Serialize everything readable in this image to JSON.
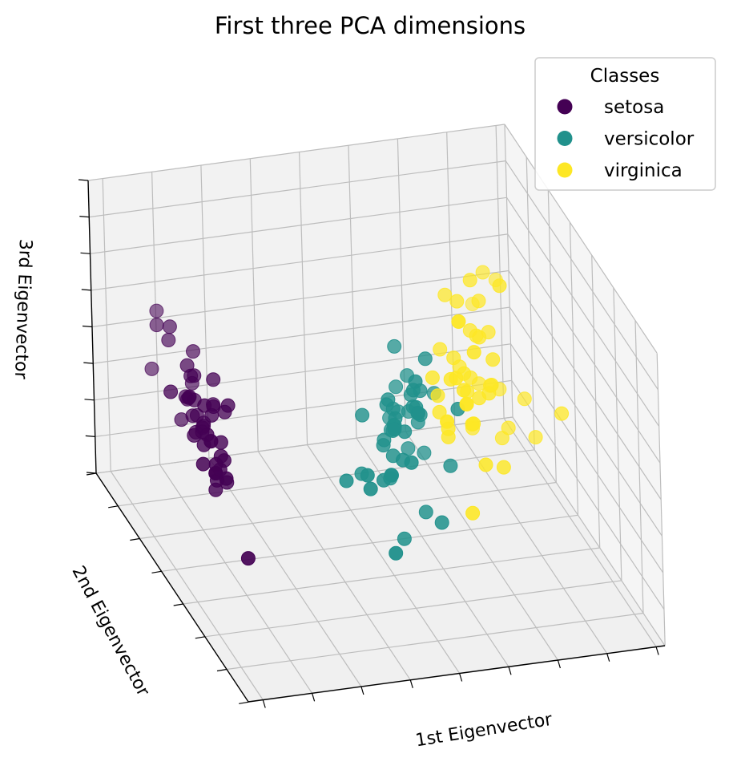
{
  "chart_data": {
    "type": "scatter",
    "title": "First three PCA dimensions",
    "xlabel": "1st Eigenvector",
    "ylabel": "2nd Eigenvector",
    "zlabel": "3rd Eigenvector",
    "projection": "3d",
    "grid": true,
    "tick_labels_visible": false,
    "legend": {
      "title": "Classes",
      "placement": "top-right",
      "entries": [
        {
          "name": "setosa",
          "color": "#440154"
        },
        {
          "name": "versicolor",
          "color": "#21918c"
        },
        {
          "name": "virginica",
          "color": "#fde725"
        }
      ]
    },
    "series": [
      {
        "name": "setosa",
        "color": "#440154",
        "points": [
          [
            -2.68,
            0.32,
            -0.03
          ],
          [
            -2.71,
            -0.18,
            -0.21
          ],
          [
            -2.89,
            -0.14,
            0.02
          ],
          [
            -2.75,
            -0.32,
            0.03
          ],
          [
            -2.73,
            0.33,
            0.09
          ],
          [
            -2.28,
            0.74,
            0.17
          ],
          [
            -2.82,
            -0.09,
            0.26
          ],
          [
            -2.63,
            0.16,
            -0.02
          ],
          [
            -2.89,
            -0.58,
            0.02
          ],
          [
            -2.67,
            -0.11,
            -0.2
          ],
          [
            -2.51,
            0.65,
            -0.08
          ],
          [
            -2.61,
            0.01,
            0.13
          ],
          [
            -2.79,
            -0.24,
            -0.24
          ],
          [
            -3.23,
            -0.51,
            0.1
          ],
          [
            -2.64,
            1.18,
            -0.16
          ],
          [
            -2.39,
            1.34,
            0.14
          ],
          [
            -2.62,
            0.81,
            0.32
          ],
          [
            -2.65,
            0.31,
            0.08
          ],
          [
            -2.2,
            0.87,
            -0.12
          ],
          [
            -2.59,
            0.51,
            0.21
          ],
          [
            -2.31,
            0.39,
            -0.26
          ],
          [
            -2.54,
            0.43,
            0.18
          ],
          [
            -3.22,
            0.13,
            0.26
          ],
          [
            -2.3,
            0.1,
            0.09
          ],
          [
            -2.36,
            -0.04,
            0.21
          ],
          [
            -2.51,
            -0.15,
            -0.25
          ],
          [
            -2.47,
            0.13,
            0.12
          ],
          [
            -2.56,
            0.37,
            -0.06
          ],
          [
            -2.64,
            0.31,
            -0.14
          ],
          [
            -2.63,
            -0.19,
            0.05
          ],
          [
            -2.59,
            -0.2,
            -0.07
          ],
          [
            -2.41,
            0.41,
            -0.14
          ],
          [
            -2.65,
            0.81,
            0.23
          ],
          [
            -2.6,
            1.1,
            0.18
          ],
          [
            -2.67,
            -0.11,
            -0.2
          ],
          [
            -2.87,
            0.08,
            -0.03
          ],
          [
            -2.63,
            0.61,
            -0.21
          ],
          [
            -2.67,
            -0.11,
            -0.2
          ],
          [
            -2.98,
            -0.48,
            0.07
          ],
          [
            -2.59,
            0.23,
            -0.07
          ],
          [
            -2.77,
            0.27,
            0.13
          ],
          [
            -2.85,
            -0.94,
            -0.34
          ],
          [
            -3.0,
            -0.34,
            0.2
          ],
          [
            -2.41,
            0.19,
            0.27
          ],
          [
            -2.21,
            0.44,
            -0.04
          ],
          [
            -2.71,
            -0.25,
            -0.1
          ],
          [
            -2.54,
            0.5,
            0.14
          ],
          [
            -2.84,
            -0.23,
            0.09
          ],
          [
            -2.54,
            0.58,
            -0.06
          ],
          [
            -2.7,
            0.11,
            -0.03
          ]
        ]
      },
      {
        "name": "versicolor",
        "color": "#21918c",
        "points": [
          [
            1.28,
            0.69,
            -0.4
          ],
          [
            0.93,
            0.32,
            -0.02
          ],
          [
            1.46,
            0.5,
            -0.32
          ],
          [
            0.18,
            -0.83,
            0.1
          ],
          [
            1.09,
            0.07,
            -0.14
          ],
          [
            0.64,
            -0.42,
            0.24
          ],
          [
            1.1,
            0.28,
            0.07
          ],
          [
            -0.75,
            -1.0,
            0.15
          ],
          [
            1.04,
            0.23,
            -0.4
          ],
          [
            -0.01,
            -0.72,
            0.28
          ],
          [
            -0.51,
            -1.26,
            -0.26
          ],
          [
            0.51,
            -0.1,
            0.07
          ],
          [
            0.26,
            -0.55,
            -0.57
          ],
          [
            0.98,
            -0.12,
            0.18
          ],
          [
            -0.17,
            -0.25,
            0.14
          ],
          [
            0.93,
            0.47,
            -0.31
          ],
          [
            0.66,
            -0.35,
            0.32
          ],
          [
            0.23,
            -0.33,
            -0.27
          ],
          [
            0.94,
            -0.54,
            -0.5
          ],
          [
            0.04,
            -0.58,
            -0.11
          ],
          [
            1.12,
            -0.08,
            0.37
          ],
          [
            0.36,
            -0.07,
            -0.15
          ],
          [
            1.3,
            -0.33,
            -0.24
          ],
          [
            0.92,
            -0.18,
            0.05
          ],
          [
            0.71,
            0.15,
            -0.22
          ],
          [
            0.9,
            0.33,
            -0.29
          ],
          [
            1.33,
            0.24,
            -0.45
          ],
          [
            1.56,
            0.27,
            -0.07
          ],
          [
            0.81,
            -0.16,
            0.1
          ],
          [
            -0.31,
            -0.37,
            -0.19
          ],
          [
            -0.07,
            -0.7,
            -0.04
          ],
          [
            -0.19,
            -0.68,
            -0.08
          ],
          [
            0.14,
            -0.31,
            -0.05
          ],
          [
            1.38,
            -0.42,
            0.19
          ],
          [
            0.59,
            -0.48,
            0.45
          ],
          [
            0.81,
            0.19,
            0.33
          ],
          [
            1.22,
            0.41,
            -0.25
          ],
          [
            0.81,
            -0.37,
            -0.51
          ],
          [
            0.25,
            -0.27,
            0.2
          ],
          [
            0.16,
            -0.68,
            0.04
          ],
          [
            0.46,
            -0.67,
            0.34
          ],
          [
            0.89,
            -0.03,
            0.11
          ],
          [
            0.23,
            -0.4,
            -0.08
          ],
          [
            -0.71,
            -1.01,
            0.06
          ],
          [
            0.36,
            -0.5,
            0.13
          ],
          [
            0.33,
            -0.21,
            0.2
          ],
          [
            0.38,
            -0.29,
            0.11
          ],
          [
            0.64,
            0.11,
            -0.19
          ],
          [
            -0.91,
            -0.75,
            -0.01
          ],
          [
            0.3,
            -0.35,
            0.1
          ]
        ]
      },
      {
        "name": "virginica",
        "color": "#fde725",
        "points": [
          [
            2.53,
            -0.01,
            0.76
          ],
          [
            1.41,
            -0.57,
            0.3
          ],
          [
            2.62,
            0.34,
            -0.11
          ],
          [
            1.97,
            -0.18,
            0.11
          ],
          [
            2.35,
            -0.04,
            0.28
          ],
          [
            3.4,
            0.55,
            -0.35
          ],
          [
            0.52,
            -1.19,
            0.55
          ],
          [
            2.93,
            0.35,
            -0.42
          ],
          [
            2.32,
            -0.24,
            -0.35
          ],
          [
            2.92,
            0.78,
            0.42
          ],
          [
            1.66,
            0.24,
            0.24
          ],
          [
            1.8,
            -0.22,
            -0.04
          ],
          [
            2.17,
            0.22,
            0.03
          ],
          [
            1.34,
            -0.78,
            0.28
          ],
          [
            1.59,
            -0.54,
            0.63
          ],
          [
            1.9,
            0.12,
            0.48
          ],
          [
            1.95,
            0.04,
            0.04
          ],
          [
            3.49,
            1.18,
            0.13
          ],
          [
            3.8,
            0.26,
            -0.32
          ],
          [
            1.3,
            -0.76,
            -0.34
          ],
          [
            2.43,
            0.38,
            0.22
          ],
          [
            1.2,
            -0.61,
            0.51
          ],
          [
            3.5,
            0.46,
            -0.57
          ],
          [
            1.39,
            -0.2,
            -0.06
          ],
          [
            2.28,
            0.33,
            0.29
          ],
          [
            2.61,
            0.56,
            -0.21
          ],
          [
            1.26,
            -0.18,
            0.05
          ],
          [
            1.29,
            -0.12,
            0.13
          ],
          [
            2.12,
            -0.21,
            0.15
          ],
          [
            2.39,
            0.46,
            -0.45
          ],
          [
            2.84,
            0.38,
            -0.5
          ],
          [
            3.23,
            1.37,
            -0.12
          ],
          [
            2.16,
            -0.22,
            0.21
          ],
          [
            1.44,
            -0.14,
            -0.15
          ],
          [
            1.78,
            -0.5,
            -0.17
          ],
          [
            3.08,
            0.69,
            -0.34
          ],
          [
            2.14,
            0.14,
            0.74
          ],
          [
            1.91,
            0.05,
            0.16
          ],
          [
            1.17,
            -0.16,
            0.28
          ],
          [
            2.11,
            0.37,
            0.03
          ],
          [
            2.31,
            0.18,
            0.32
          ],
          [
            1.92,
            0.41,
            0.51
          ],
          [
            1.41,
            -0.57,
            0.3
          ],
          [
            2.56,
            0.28,
            0.29
          ],
          [
            2.42,
            0.3,
            0.5
          ],
          [
            1.94,
            0.19,
            0.58
          ],
          [
            1.53,
            -0.38,
            0.29
          ],
          [
            1.76,
            0.08,
            0.26
          ],
          [
            1.9,
            0.12,
            0.48
          ],
          [
            1.39,
            -0.28,
            0.32
          ]
        ]
      }
    ]
  }
}
